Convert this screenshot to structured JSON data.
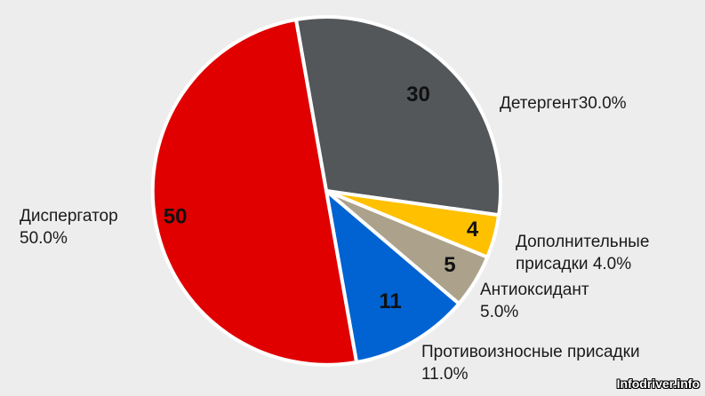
{
  "chart_data": {
    "type": "pie",
    "slices": [
      {
        "category": "Детергент",
        "value": 30,
        "percent_label": "30.0%",
        "color": "#53575a"
      },
      {
        "category": "Дополнительные присадки",
        "value": 4,
        "percent_label": "4.0%",
        "color": "#ffc000"
      },
      {
        "category": "Антиоксидант",
        "value": 5,
        "percent_label": "5.0%",
        "color": "#aca28c"
      },
      {
        "category": "Противоизносные присадки",
        "value": 11,
        "percent_label": "11.0%",
        "color": "#0063d1"
      },
      {
        "category": "Диспергатор",
        "value": 50,
        "percent_label": "50.0%",
        "color": "#e00000"
      }
    ],
    "category_labels": [
      [
        "Детергент30.0%"
      ],
      [
        "Дополнительные",
        "присадки 4.0%"
      ],
      [
        "Антиоксидант",
        "5.0%"
      ],
      [
        "Противоизносные присадки",
        "11.0%"
      ],
      [
        "Диспергатор",
        "50.0%"
      ]
    ],
    "start_angle_deg": -10,
    "direction": "clockwise"
  },
  "watermark": "Infodriver.info"
}
